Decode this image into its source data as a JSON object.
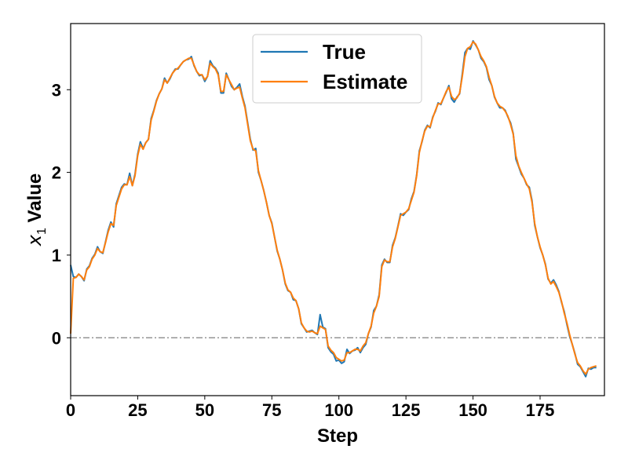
{
  "chart_data": {
    "type": "line",
    "title": "",
    "xlabel": "Step",
    "ylabel_parts": {
      "var": "x",
      "sub": "1",
      "rest": " Value"
    },
    "xlim": [
      0,
      199
    ],
    "ylim": [
      -0.7,
      3.8
    ],
    "xticks": [
      0,
      25,
      50,
      75,
      100,
      125,
      150,
      175
    ],
    "yticks": [
      0,
      1,
      2,
      3
    ],
    "reference_line": {
      "y": 0,
      "style": "dash-dot",
      "color": "#808080"
    },
    "legend": {
      "location": "top-center"
    },
    "grid": false,
    "x_step": 1,
    "series": [
      {
        "name": "True",
        "color": "#1f77b4",
        "values": [
          0.88,
          0.74,
          0.73,
          0.77,
          0.74,
          0.69,
          0.83,
          0.87,
          0.96,
          1.01,
          1.1,
          1.04,
          1.02,
          1.16,
          1.3,
          1.4,
          1.34,
          1.62,
          1.72,
          1.82,
          1.86,
          1.85,
          1.99,
          1.84,
          1.98,
          2.22,
          2.37,
          2.29,
          2.36,
          2.4,
          2.65,
          2.75,
          2.87,
          2.95,
          3.01,
          3.14,
          3.08,
          3.13,
          3.2,
          3.25,
          3.25,
          3.3,
          3.34,
          3.36,
          3.37,
          3.4,
          3.29,
          3.22,
          3.17,
          3.18,
          3.1,
          3.16,
          3.35,
          3.29,
          3.26,
          3.2,
          2.96,
          2.96,
          3.2,
          3.12,
          3.04,
          3.0,
          3.03,
          3.07,
          2.92,
          2.8,
          2.6,
          2.4,
          2.27,
          2.29,
          2.0,
          1.9,
          1.78,
          1.64,
          1.48,
          1.39,
          1.22,
          1.05,
          0.95,
          0.82,
          0.65,
          0.57,
          0.55,
          0.46,
          0.45,
          0.35,
          0.17,
          0.12,
          0.07,
          0.08,
          0.09,
          0.06,
          0.04,
          0.28,
          0.13,
          0.11,
          -0.12,
          -0.17,
          -0.2,
          -0.28,
          -0.27,
          -0.31,
          -0.29,
          -0.14,
          -0.19,
          -0.16,
          -0.15,
          -0.12,
          -0.18,
          -0.12,
          -0.08,
          0.05,
          0.13,
          0.33,
          0.38,
          0.52,
          0.88,
          0.95,
          0.91,
          0.91,
          1.12,
          1.21,
          1.35,
          1.5,
          1.48,
          1.52,
          1.55,
          1.68,
          1.77,
          1.97,
          2.26,
          2.37,
          2.51,
          2.57,
          2.54,
          2.67,
          2.74,
          2.84,
          2.82,
          2.9,
          2.97,
          3.05,
          2.89,
          2.85,
          2.91,
          2.95,
          3.19,
          3.45,
          3.5,
          3.49,
          3.59,
          3.54,
          3.48,
          3.38,
          3.34,
          3.27,
          3.12,
          3.05,
          2.91,
          2.84,
          2.78,
          2.78,
          2.75,
          2.67,
          2.6,
          2.47,
          2.16,
          2.07,
          1.98,
          1.93,
          1.85,
          1.82,
          1.66,
          1.36,
          1.22,
          1.09,
          1.0,
          0.89,
          0.71,
          0.66,
          0.7,
          0.64,
          0.56,
          0.43,
          0.32,
          0.16,
          0.02,
          -0.08,
          -0.19,
          -0.32,
          -0.35,
          -0.41,
          -0.47,
          -0.37,
          -0.38,
          -0.36,
          -0.36
        ]
      },
      {
        "name": "Estimate",
        "color": "#ff7f0e",
        "values": [
          0.05,
          0.72,
          0.73,
          0.77,
          0.74,
          0.7,
          0.82,
          0.86,
          0.95,
          1.0,
          1.08,
          1.04,
          1.03,
          1.15,
          1.28,
          1.38,
          1.36,
          1.6,
          1.7,
          1.8,
          1.85,
          1.85,
          1.95,
          1.84,
          1.96,
          2.2,
          2.34,
          2.28,
          2.36,
          2.4,
          2.63,
          2.74,
          2.86,
          2.95,
          3.01,
          3.12,
          3.08,
          3.14,
          3.2,
          3.24,
          3.26,
          3.3,
          3.34,
          3.36,
          3.38,
          3.38,
          3.3,
          3.22,
          3.18,
          3.18,
          3.12,
          3.16,
          3.32,
          3.28,
          3.25,
          3.18,
          2.98,
          2.98,
          3.18,
          3.12,
          3.06,
          3.0,
          3.02,
          3.03,
          2.9,
          2.78,
          2.58,
          2.38,
          2.28,
          2.26,
          2.02,
          1.9,
          1.78,
          1.64,
          1.48,
          1.38,
          1.22,
          1.06,
          0.95,
          0.82,
          0.66,
          0.58,
          0.55,
          0.48,
          0.45,
          0.35,
          0.18,
          0.12,
          0.08,
          0.07,
          0.08,
          0.06,
          0.05,
          0.14,
          0.12,
          0.1,
          -0.1,
          -0.15,
          -0.18,
          -0.24,
          -0.26,
          -0.28,
          -0.27,
          -0.18,
          -0.18,
          -0.16,
          -0.14,
          -0.14,
          -0.16,
          -0.1,
          -0.06,
          0.05,
          0.14,
          0.3,
          0.38,
          0.5,
          0.86,
          0.94,
          0.92,
          0.92,
          1.1,
          1.2,
          1.34,
          1.48,
          1.5,
          1.52,
          1.56,
          1.66,
          1.76,
          1.96,
          2.24,
          2.38,
          2.5,
          2.56,
          2.55,
          2.66,
          2.75,
          2.83,
          2.83,
          2.9,
          2.98,
          3.03,
          2.92,
          2.88,
          2.9,
          2.96,
          3.16,
          3.4,
          3.5,
          3.52,
          3.58,
          3.55,
          3.48,
          3.4,
          3.35,
          3.28,
          3.15,
          3.05,
          2.92,
          2.84,
          2.8,
          2.78,
          2.74,
          2.68,
          2.58,
          2.46,
          2.2,
          2.08,
          2.0,
          1.93,
          1.86,
          1.8,
          1.64,
          1.38,
          1.22,
          1.1,
          1.0,
          0.88,
          0.72,
          0.65,
          0.68,
          0.62,
          0.55,
          0.44,
          0.3,
          0.18,
          0.04,
          -0.08,
          -0.2,
          -0.3,
          -0.34,
          -0.4,
          -0.44,
          -0.38,
          -0.36,
          -0.35,
          -0.34
        ]
      }
    ]
  }
}
